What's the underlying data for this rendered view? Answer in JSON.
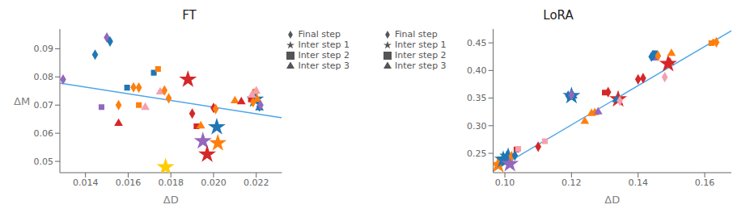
{
  "chart_data": [
    {
      "type": "scatter",
      "title": "FT",
      "xlabel": "ΔD",
      "ylabel": "ΔM",
      "xlim": [
        0.0128,
        0.0232
      ],
      "ylim": [
        0.046,
        0.097
      ],
      "xticks": [
        0.014,
        0.016,
        0.018,
        {
          "value": 0.02,
          "label": "0.020"
        },
        0.022
      ],
      "yticks": [
        0.05,
        0.06,
        0.07,
        0.08,
        0.09
      ],
      "grid": false,
      "legend": "upper right",
      "series": [
        {
          "type": "line",
          "color": "#4da6e8",
          "x": [
            0.0128,
            0.0232
          ],
          "values": [
            0.0778,
            0.0655
          ]
        },
        {
          "type": "scatter",
          "name": "Inter step 1",
          "marker": "star",
          "color": "#555555",
          "x": [
            0.01775,
            0.0188,
            0.0195,
            0.0197,
            0.02015,
            0.0202,
            0.02195
          ],
          "values": [
            0.048,
            0.0791,
            0.0572,
            0.0525,
            0.0622,
            0.0565,
            0.072
          ],
          "colors": [
            "#ffcc00",
            "#d62728",
            "#9467bd",
            "#d62728",
            "#1f77b4",
            "#ff7f0e",
            "#1f77b4"
          ]
        },
        {
          "type": "scatter",
          "name": "Inter step 2",
          "marker": "square",
          "color": "#555555",
          "x": [
            0.01475,
            0.01595,
            0.0165,
            0.0172,
            0.0174,
            0.0192,
            0.02175,
            0.02195
          ],
          "values": [
            0.0693,
            0.0762,
            0.07,
            0.0815,
            0.0828,
            0.0625,
            0.072,
            0.0748
          ],
          "colors": [
            "#9467bd",
            "#1f77b4",
            "#ff7f0e",
            "#1f77b4",
            "#ff7f0e",
            "#d62728",
            "#d62728",
            "#ff7f0e"
          ]
        },
        {
          "type": "scatter",
          "name": "Inter step 3",
          "marker": "triangle",
          "color": "#555555",
          "x": [
            0.01555,
            0.0168,
            0.0175,
            0.0194,
            0.021,
            0.0213,
            0.02205,
            0.02215,
            0.0218,
            0.022
          ],
          "values": [
            0.0635,
            0.0692,
            0.0747,
            0.0626,
            0.0715,
            0.0712,
            0.072,
            0.069,
            0.0735,
            0.075
          ],
          "colors": [
            "#d62728",
            "#f4a0b0",
            "#f4a0b0",
            "#ff7f0e",
            "#ff7f0e",
            "#d62728",
            "#ff7f0e",
            "#1f77b4",
            "#f4a0b0",
            "#f4a0b0"
          ]
        },
        {
          "type": "scatter",
          "name": "Final step",
          "marker": "diamond",
          "color": "#555555",
          "x": [
            0.01295,
            0.01445,
            0.015,
            0.01515,
            0.01555,
            0.01625,
            0.0165,
            0.0177,
            0.0179,
            0.019,
            0.02,
            0.0201,
            0.02185,
            0.02215,
            0.0222
          ],
          "values": [
            0.0791,
            0.0879,
            0.094,
            0.0926,
            0.07,
            0.0763,
            0.0762,
            0.0752,
            0.0724,
            0.067,
            0.069,
            0.0686,
            0.071,
            0.0695,
            0.07
          ],
          "colors": [
            "#9467bd",
            "#1f77b4",
            "#9467bd",
            "#1f77b4",
            "#ff7f0e",
            "#ff7f0e",
            "#ff7f0e",
            "#ff7f0e",
            "#ff7f0e",
            "#d62728",
            "#d62728",
            "#ff7f0e",
            "#ff7f0e",
            "#1f77b4",
            "#9467bd"
          ]
        }
      ]
    },
    {
      "type": "scatter",
      "title": "LoRA",
      "xlabel": "ΔD",
      "xlim": [
        0.0965,
        0.168
      ],
      "ylim": [
        0.215,
        0.475
      ],
      "xticks": [
        {
          "value": 0.1,
          "label": "0.10"
        },
        0.12,
        0.14,
        0.16
      ],
      "yticks": [
        0.25,
        {
          "value": 0.3,
          "label": "0.30"
        },
        0.35,
        {
          "value": 0.4,
          "label": "0.40"
        },
        0.45
      ],
      "grid": false,
      "legend": "upper left",
      "series": [
        {
          "type": "line",
          "color": "#4da6e8",
          "x": [
            0.0965,
            0.168
          ],
          "values": [
            0.218,
            0.472
          ]
        },
        {
          "type": "scatter",
          "name": "Inter step 1",
          "marker": "star",
          "color": "#555555",
          "x": [
            0.098,
            0.0995,
            0.1005,
            0.101,
            0.1015,
            0.12,
            0.134,
            0.149
          ],
          "values": [
            0.229,
            0.2385,
            0.239,
            0.244,
            0.231,
            0.354,
            0.348,
            0.412
          ],
          "colors": [
            "#ff7f0e",
            "#1f77b4",
            "#1f77b4",
            "#1f77b4",
            "#9467bd",
            "#1f77b4",
            "#d62728",
            "#d62728"
          ]
        },
        {
          "type": "scatter",
          "name": "Inter step 2",
          "marker": "square",
          "color": "#555555",
          "x": [
            0.1035,
            0.104,
            0.112,
            0.13,
            0.145,
            0.162,
            0.163
          ],
          "values": [
            0.257,
            0.258,
            0.272,
            0.36,
            0.431,
            0.4495,
            0.4515
          ],
          "colors": [
            "#d62728",
            "#f4a0b0",
            "#f4a0b0",
            "#d62728",
            "#1f77b4",
            "#ff7f0e",
            "#ff7f0e"
          ]
        },
        {
          "type": "scatter",
          "name": "Inter step 3",
          "marker": "triangle",
          "color": "#555555",
          "x": [
            0.1205,
            0.124,
            0.126,
            0.127,
            0.128,
            0.1335,
            0.145,
            0.1495,
            0.15
          ],
          "values": [
            0.354,
            0.308,
            0.322,
            0.3235,
            0.325,
            0.347,
            0.4225,
            0.415,
            0.431
          ],
          "colors": [
            "#1f77b4",
            "#ff7f0e",
            "#ff7f0e",
            "#ff7f0e",
            "#9467bd",
            "#1f77b4",
            "#9467bd",
            "#d62728",
            "#ff7f0e"
          ]
        },
        {
          "type": "scatter",
          "name": "Final step",
          "marker": "diamond",
          "color": "#555555",
          "x": [
            0.102,
            0.103,
            0.11,
            0.119,
            0.12,
            0.131,
            0.1345,
            0.14,
            0.1415,
            0.144,
            0.1445,
            0.146,
            0.148,
            0.1635
          ],
          "values": [
            0.245,
            0.246,
            0.262,
            0.3545,
            0.3555,
            0.3608,
            0.345,
            0.384,
            0.386,
            0.425,
            0.427,
            0.4265,
            0.388,
            0.451
          ],
          "colors": [
            "#ff7f0e",
            "#1f77b4",
            "#d62728",
            "#1f77b4",
            "#9467bd",
            "#d62728",
            "#f4a0b0",
            "#d62728",
            "#d62728",
            "#1f77b4",
            "#1f77b4",
            "#ff7f0e",
            "#f4a0b0",
            "#ff7f0e"
          ]
        }
      ]
    }
  ]
}
